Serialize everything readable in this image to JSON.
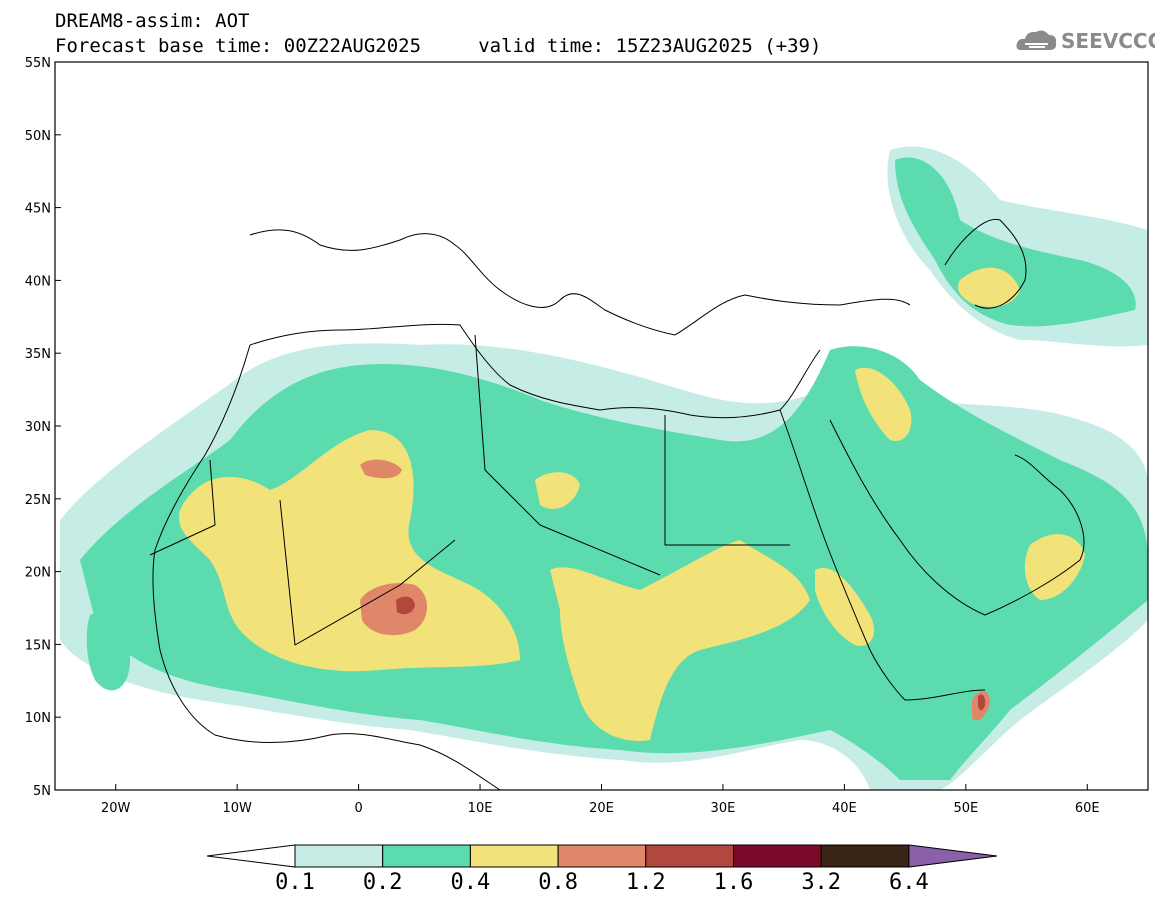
{
  "title": {
    "line1": "DREAM8-assim: AOT",
    "line2": "Forecast base time: 00Z22AUG2025     valid time: 15Z23AUG2025 (+39)"
  },
  "logo": {
    "text": "SEEVCCC",
    "icon": "cloud-logo-icon"
  },
  "map": {
    "lon_range": [
      -25,
      65
    ],
    "lat_range": [
      5,
      55
    ],
    "lat_ticks": [
      {
        "value": 55,
        "label": "55N"
      },
      {
        "value": 50,
        "label": "50N"
      },
      {
        "value": 45,
        "label": "45N"
      },
      {
        "value": 40,
        "label": "40N"
      },
      {
        "value": 35,
        "label": "35N"
      },
      {
        "value": 30,
        "label": "30N"
      },
      {
        "value": 25,
        "label": "25N"
      },
      {
        "value": 20,
        "label": "20N"
      },
      {
        "value": 15,
        "label": "15N"
      },
      {
        "value": 10,
        "label": "10N"
      },
      {
        "value": 5,
        "label": "5N"
      }
    ],
    "lon_ticks": [
      {
        "value": -20,
        "label": "20W"
      },
      {
        "value": -10,
        "label": "10W"
      },
      {
        "value": 0,
        "label": "0"
      },
      {
        "value": 10,
        "label": "10E"
      },
      {
        "value": 20,
        "label": "20E"
      },
      {
        "value": 30,
        "label": "30E"
      },
      {
        "value": 40,
        "label": "40E"
      },
      {
        "value": 50,
        "label": "50E"
      },
      {
        "value": 60,
        "label": "60E"
      }
    ],
    "field_colors": {
      "c1": "#c5ede6",
      "c2": "#5cdcae",
      "c3": "#f2e27a",
      "c4": "#e0876a",
      "c5": "#b2473d"
    },
    "coast_color": "#000000"
  },
  "colorbar": {
    "colors": [
      "#ffffff",
      "#c5ede6",
      "#5cdcae",
      "#f2e27a",
      "#e0876a",
      "#b2473d",
      "#7a0a2a",
      "#3a2416",
      "#8a60a8"
    ],
    "labels": [
      "0.1",
      "0.2",
      "0.4",
      "0.8",
      "1.2",
      "1.6",
      "3.2",
      "6.4"
    ]
  }
}
